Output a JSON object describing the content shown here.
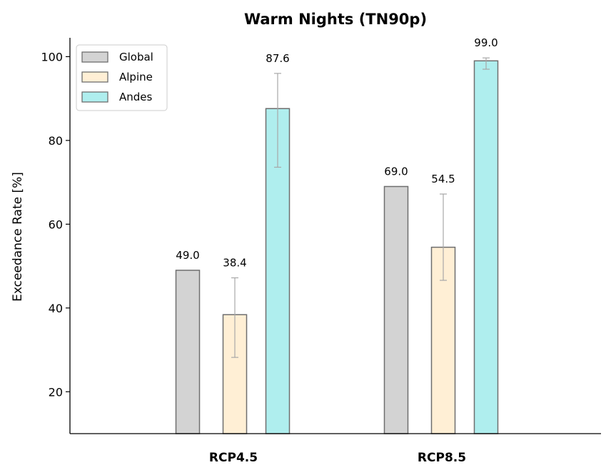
{
  "chart_data": {
    "type": "bar",
    "title": "Warm Nights (TN90p)",
    "xlabel": "",
    "ylabel": "Exceedance Rate [%]",
    "categories": [
      "RCP4.5",
      "RCP8.5"
    ],
    "ylim": [
      10,
      104.5
    ],
    "yticks": [
      20,
      40,
      60,
      80,
      100
    ],
    "grid": false,
    "legend_position": "top-left",
    "series": [
      {
        "name": "Global",
        "color": "#d3d3d3",
        "values": [
          49.0,
          69.0
        ],
        "errors": [
          null,
          null
        ],
        "labels": [
          "49.0",
          "69.0"
        ]
      },
      {
        "name": "Alpine",
        "color": "#ffefd5",
        "values": [
          38.4,
          54.5
        ],
        "errors": [
          [
            28.2,
            47.2
          ],
          [
            46.6,
            67.2
          ]
        ],
        "labels": [
          "38.4",
          "54.5"
        ]
      },
      {
        "name": "Andes",
        "color": "#afeeee",
        "values": [
          87.6,
          99.0
        ],
        "errors": [
          [
            73.6,
            96.0
          ],
          [
            97.0,
            99.7
          ]
        ],
        "labels": [
          "87.6",
          "99.0"
        ]
      }
    ]
  }
}
